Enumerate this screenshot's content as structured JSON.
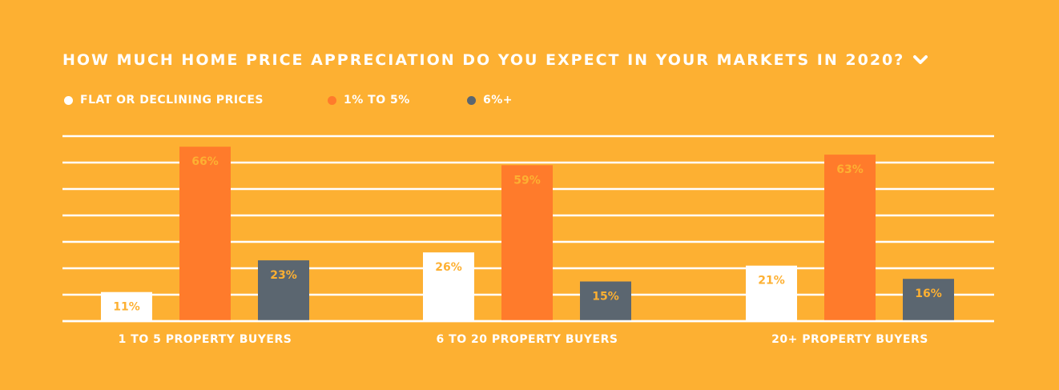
{
  "title": "HOW MUCH HOME PRICE APPRECIATION DO YOU EXPECT IN YOUR MARKETS IN 2020?",
  "icons": {
    "title_icon": "chevron-down-icon"
  },
  "colors": {
    "background": "#FDB032",
    "gridline": "#FFFFFF",
    "label_text": "#FDB032"
  },
  "chart_data": {
    "type": "bar",
    "title": "HOW MUCH HOME PRICE APPRECIATION DO YOU EXPECT IN YOUR MARKETS IN 2020?",
    "categories": [
      "1 TO 5 PROPERTY BUYERS",
      "6 TO 20 PROPERTY BUYERS",
      "20+ PROPERTY BUYERS"
    ],
    "series": [
      {
        "name": "FLAT OR DECLINING PRICES",
        "color": "#FFFFFF",
        "values": [
          11,
          26,
          21
        ],
        "labels": [
          "11%",
          "26%",
          "21%"
        ]
      },
      {
        "name": "1% TO 5%",
        "color": "#FF7B2B",
        "values": [
          66,
          59,
          63
        ],
        "labels": [
          "66%",
          "59%",
          "63%"
        ]
      },
      {
        "name": "6%+",
        "color": "#5B6670",
        "values": [
          23,
          15,
          16
        ],
        "labels": [
          "23%",
          "15%",
          "16%"
        ]
      }
    ],
    "ylim": [
      0,
      70
    ],
    "grid": true,
    "legend": "top-left",
    "xlabel": "",
    "ylabel": ""
  }
}
